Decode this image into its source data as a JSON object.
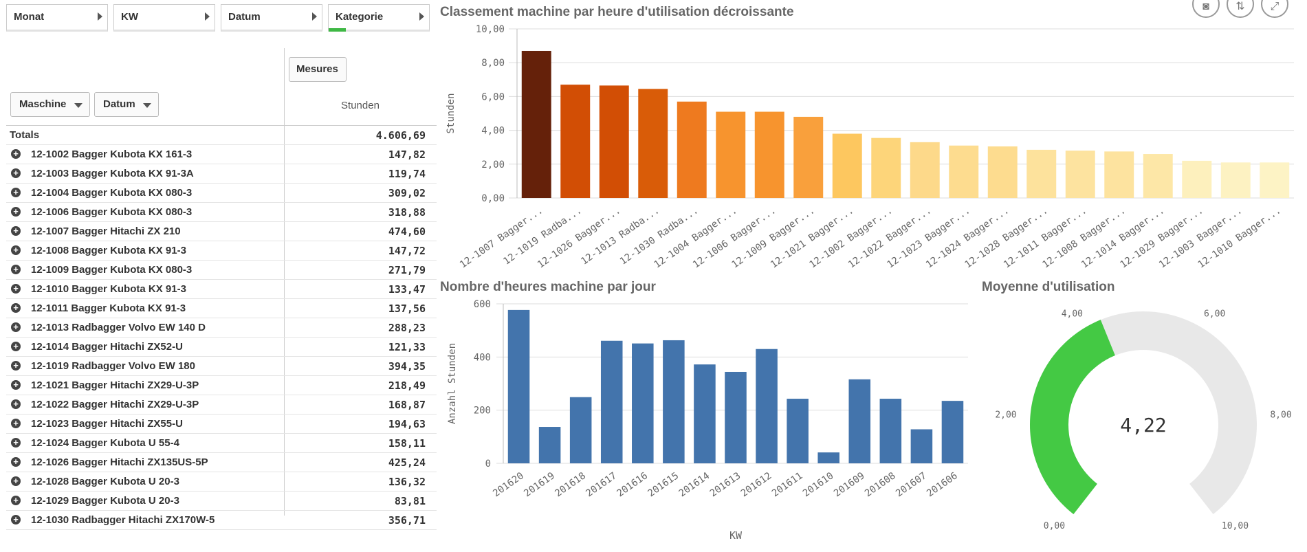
{
  "filters": [
    "Monat",
    "KW",
    "Datum",
    "Kategorie"
  ],
  "table": {
    "dim_buttons": [
      "Maschine",
      "Datum"
    ],
    "measures_button": "Mesures",
    "measure_header": "Stunden",
    "totals_label": "Totals",
    "totals_value": "4.606,69",
    "rows": [
      {
        "name": "12-1002 Bagger Kubota KX 161-3",
        "value": "147,82"
      },
      {
        "name": "12-1003 Bagger Kubota KX 91-3A",
        "value": "119,74"
      },
      {
        "name": "12-1004 Bagger Kubota KX 080-3",
        "value": "309,02"
      },
      {
        "name": "12-1006 Bagger Kubota KX 080-3",
        "value": "318,88"
      },
      {
        "name": "12-1007 Bagger Hitachi ZX 210",
        "value": "474,60"
      },
      {
        "name": "12-1008 Bagger Kubota KX 91-3",
        "value": "147,72"
      },
      {
        "name": "12-1009 Bagger Kubota KX 080-3",
        "value": "271,79"
      },
      {
        "name": "12-1010 Bagger Kubota KX 91-3",
        "value": "133,47"
      },
      {
        "name": "12-1011 Bagger Kubota KX 91-3",
        "value": "137,56"
      },
      {
        "name": "12-1013 Radbagger Volvo EW 140 D",
        "value": "288,23"
      },
      {
        "name": "12-1014 Bagger Hitachi ZX52-U",
        "value": "121,33"
      },
      {
        "name": "12-1019 Radbagger Volvo EW 180",
        "value": "394,35"
      },
      {
        "name": "12-1021 Bagger Hitachi ZX29-U-3P",
        "value": "218,49"
      },
      {
        "name": "12-1022 Bagger Hitachi ZX29-U-3P",
        "value": "168,87"
      },
      {
        "name": "12-1023 Bagger Hitachi ZX55-U",
        "value": "194,63"
      },
      {
        "name": "12-1024 Bagger Kubota U 55-4",
        "value": "158,11"
      },
      {
        "name": "12-1026 Bagger Hitachi ZX135US-5P",
        "value": "425,24"
      },
      {
        "name": "12-1028 Bagger Kubota U 20-3",
        "value": "136,32"
      },
      {
        "name": "12-1029 Bagger Kubota U 20-3",
        "value": "83,81"
      },
      {
        "name": "12-1030 Radbagger Hitachi ZX170W-5",
        "value": "356,71"
      }
    ]
  },
  "toolbar_icons": [
    "camera-icon",
    "adjust-icon",
    "expand-icon"
  ],
  "chart_data": [
    {
      "type": "bar",
      "title": "Classement machine par heure d'utilisation décroissante",
      "ylabel": "Stunden",
      "ylim": [
        0,
        10
      ],
      "yticks": [
        "0,00",
        "2,00",
        "4,00",
        "6,00",
        "8,00",
        "10,00"
      ],
      "categories": [
        "12-1007 Bagger...",
        "12-1019 Radba...",
        "12-1026 Bagger...",
        "12-1013 Radba...",
        "12-1030 Radba...",
        "12-1004 Bagger...",
        "12-1006 Bagger...",
        "12-1009 Bagger...",
        "12-1021 Bagger...",
        "12-1002 Bagger...",
        "12-1022 Bagger...",
        "12-1023 Bagger...",
        "12-1024 Bagger...",
        "12-1028 Bagger...",
        "12-1011 Bagger...",
        "12-1008 Bagger...",
        "12-1014 Bagger...",
        "12-1029 Bagger...",
        "12-1003 Bagger...",
        "12-1010 Bagger..."
      ],
      "values": [
        8.7,
        6.7,
        6.65,
        6.45,
        5.7,
        5.1,
        5.1,
        4.8,
        3.8,
        3.55,
        3.3,
        3.1,
        3.05,
        2.85,
        2.8,
        2.75,
        2.6,
        2.2,
        2.1,
        2.1
      ],
      "colors": [
        "#65210a",
        "#d24e05",
        "#d24e05",
        "#d95c08",
        "#ee7a1f",
        "#f7942e",
        "#f7942e",
        "#f9a03c",
        "#fdc75f",
        "#fdd57a",
        "#fdd98a",
        "#fddc8f",
        "#fddc8f",
        "#fde29c",
        "#fde39f",
        "#fde39f",
        "#fde7a7",
        "#fdf0bd",
        "#fdf2c2",
        "#fdf3c5"
      ],
      "grid": true
    },
    {
      "type": "bar",
      "title": "Nombre d'heures machine par jour",
      "xlabel": "KW",
      "ylabel": "Anzahl Stunden",
      "ylim": [
        0,
        600
      ],
      "yticks": [
        "0",
        "200",
        "400",
        "600"
      ],
      "categories": [
        "201620",
        "201619",
        "201618",
        "201617",
        "201616",
        "201615",
        "201614",
        "201613",
        "201612",
        "201611",
        "201610",
        "201609",
        "201608",
        "201607",
        "201606"
      ],
      "values": [
        577,
        137,
        249,
        461,
        451,
        463,
        372,
        344,
        430,
        243,
        41,
        316,
        243,
        128,
        235
      ],
      "color": "#4374ac",
      "grid": true
    }
  ],
  "gauge": {
    "title": "Moyenne d'utilisation",
    "value": 4.22,
    "value_label": "4,22",
    "min": 0,
    "max": 10,
    "ticks": [
      "0,00",
      "2,00",
      "4,00",
      "6,00",
      "8,00",
      "10,00"
    ],
    "fill_color": "#44c944",
    "track_color": "#e8e8e8"
  }
}
